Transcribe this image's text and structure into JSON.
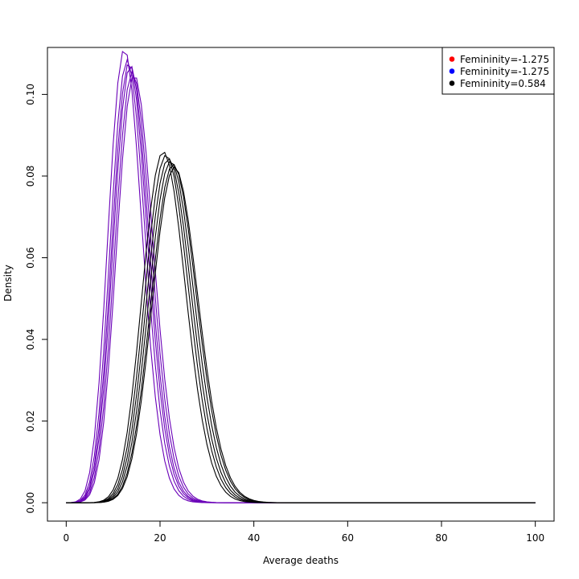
{
  "chart_data": {
    "type": "line",
    "title": "",
    "xlabel": "Average deaths",
    "ylabel": "Density",
    "xlim": [
      -4,
      104
    ],
    "ylim": [
      -0.0045,
      0.1115
    ],
    "x_ticks": [
      0,
      20,
      40,
      60,
      80,
      100
    ],
    "y_ticks": [
      0.0,
      0.02,
      0.04,
      0.06,
      0.08,
      0.1
    ],
    "x_tick_labels": [
      "0",
      "20",
      "40",
      "60",
      "80",
      "100"
    ],
    "y_tick_labels": [
      "0.00",
      "0.02",
      "0.04",
      "0.06",
      "0.08",
      "0.10"
    ],
    "grid": false,
    "legend_position": "top-right",
    "legend": [
      {
        "label": "Femininity=-1.275",
        "color": "#ff0000"
      },
      {
        "label": "Femininity=-1.275",
        "color": "#0000ff"
      },
      {
        "label": "Femininity=0.584",
        "color": "#000000"
      }
    ],
    "x_grid_max": 100,
    "series": [
      {
        "color": "#6a00b8",
        "peak_x": 12.9,
        "peak_y": 0.1105
      },
      {
        "color": "#6a00b8",
        "peak_x": 13.5,
        "peak_y": 0.1085
      },
      {
        "color": "#6a00b8",
        "peak_x": 13.9,
        "peak_y": 0.1072
      },
      {
        "color": "#6a00b8",
        "peak_x": 14.2,
        "peak_y": 0.1068
      },
      {
        "color": "#6a00b8",
        "peak_x": 14.6,
        "peak_y": 0.1055
      },
      {
        "color": "#6a00b8",
        "peak_x": 15.0,
        "peak_y": 0.104
      },
      {
        "color": "#000000",
        "peak_x": 21.2,
        "peak_y": 0.0858
      },
      {
        "color": "#000000",
        "peak_x": 21.8,
        "peak_y": 0.085
      },
      {
        "color": "#000000",
        "peak_x": 22.3,
        "peak_y": 0.0842
      },
      {
        "color": "#000000",
        "peak_x": 22.8,
        "peak_y": 0.0835
      },
      {
        "color": "#000000",
        "peak_x": 23.3,
        "peak_y": 0.0828
      },
      {
        "color": "#000000",
        "peak_x": 23.6,
        "peak_y": 0.0822
      }
    ]
  }
}
